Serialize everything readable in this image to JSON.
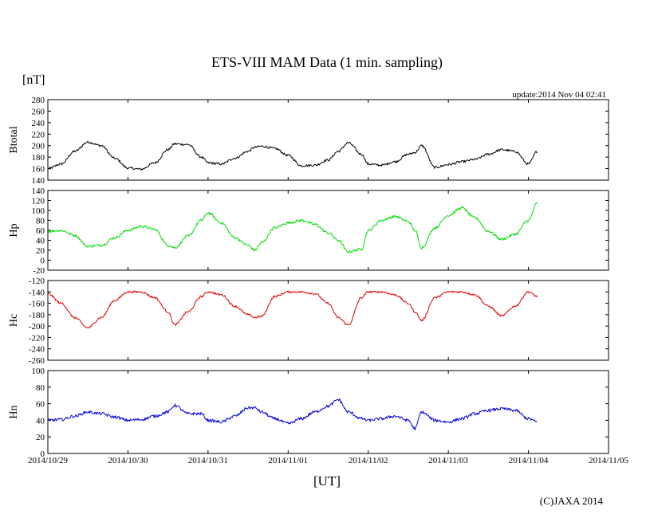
{
  "chart_data": {
    "type": "line",
    "title": "ETS-VIII MAM Data (1 min. sampling)",
    "y_unit": "[nT]",
    "xlabel": "[UT]",
    "update_text": "update:2014 Nov 04 02:41",
    "copyright": "(C)JAXA 2014",
    "x_ticks": [
      "2014/10/29",
      "2014/10/30",
      "2014/10/31",
      "2014/11/01",
      "2014/11/02",
      "2014/11/03",
      "2014/11/04",
      "2014/11/05"
    ],
    "xlim": [
      "2014/10/29 00:00",
      "2014/11/05 00:00"
    ],
    "grid": false,
    "panels": [
      {
        "ylabel": "Btotal",
        "color": "#000000",
        "ylim": [
          140,
          280
        ],
        "yticks": [
          140,
          160,
          180,
          200,
          220,
          240,
          260,
          280
        ],
        "noise": 2.0,
        "series": {
          "x": [
            "2014/10/29 00:00",
            "2014/10/29 04:00",
            "2014/10/29 08:00",
            "2014/10/29 12:00",
            "2014/10/29 16:00",
            "2014/10/29 20:00",
            "2014/10/30 00:00",
            "2014/10/30 04:00",
            "2014/10/30 08:00",
            "2014/10/30 12:00",
            "2014/10/30 14:00",
            "2014/10/30 18:00",
            "2014/10/30 22:00",
            "2014/10/31 00:00",
            "2014/10/31 04:00",
            "2014/10/31 08:00",
            "2014/10/31 12:00",
            "2014/10/31 14:00",
            "2014/10/31 16:00",
            "2014/10/31 20:00",
            "2014/11/01 00:00",
            "2014/11/01 04:00",
            "2014/11/01 08:00",
            "2014/11/01 12:00",
            "2014/11/01 15:00",
            "2014/11/01 18:00",
            "2014/11/01 22:00",
            "2014/11/02 00:00",
            "2014/11/02 04:00",
            "2014/11/02 08:00",
            "2014/11/02 12:00",
            "2014/11/02 14:00",
            "2014/11/02 16:00",
            "2014/11/02 20:00",
            "2014/11/03 00:00",
            "2014/11/03 04:00",
            "2014/11/03 08:00",
            "2014/11/03 12:00",
            "2014/11/03 16:00",
            "2014/11/03 20:00",
            "2014/11/04 00:00",
            "2014/11/04 02:40"
          ],
          "y": [
            160,
            168,
            190,
            206,
            200,
            178,
            161,
            159,
            170,
            193,
            203,
            202,
            180,
            170,
            168,
            178,
            190,
            197,
            199,
            195,
            183,
            165,
            166,
            175,
            190,
            205,
            185,
            168,
            166,
            172,
            185,
            188,
            200,
            162,
            167,
            172,
            176,
            185,
            193,
            190,
            168,
            190
          ]
        }
      },
      {
        "ylabel": "Hp",
        "color": "#00dd00",
        "ylim": [
          -20,
          140
        ],
        "yticks": [
          -20,
          0,
          20,
          40,
          60,
          80,
          100,
          120,
          140
        ],
        "noise": 2.5,
        "series": {
          "x": [
            "2014/10/29 00:00",
            "2014/10/29 04:00",
            "2014/10/29 08:00",
            "2014/10/29 12:00",
            "2014/10/29 16:00",
            "2014/10/29 20:00",
            "2014/10/30 00:00",
            "2014/10/30 04:00",
            "2014/10/30 08:00",
            "2014/10/30 12:00",
            "2014/10/30 14:00",
            "2014/10/30 18:00",
            "2014/10/30 22:00",
            "2014/10/31 00:00",
            "2014/10/31 04:00",
            "2014/10/31 08:00",
            "2014/10/31 12:00",
            "2014/10/31 14:00",
            "2014/10/31 16:00",
            "2014/10/31 20:00",
            "2014/11/01 00:00",
            "2014/11/01 04:00",
            "2014/11/01 08:00",
            "2014/11/01 12:00",
            "2014/11/01 15:00",
            "2014/11/01 18:00",
            "2014/11/01 22:00",
            "2014/11/02 00:00",
            "2014/11/02 04:00",
            "2014/11/02 08:00",
            "2014/11/02 12:00",
            "2014/11/02 14:00",
            "2014/11/02 16:00",
            "2014/11/02 20:00",
            "2014/11/03 00:00",
            "2014/11/03 04:00",
            "2014/11/03 08:00",
            "2014/11/03 12:00",
            "2014/11/03 16:00",
            "2014/11/03 20:00",
            "2014/11/04 00:00",
            "2014/11/04 02:40"
          ],
          "y": [
            58,
            60,
            50,
            28,
            30,
            45,
            60,
            68,
            62,
            30,
            25,
            48,
            80,
            95,
            75,
            45,
            30,
            20,
            35,
            65,
            75,
            80,
            72,
            55,
            40,
            17,
            22,
            60,
            80,
            88,
            78,
            60,
            25,
            65,
            90,
            105,
            85,
            58,
            42,
            52,
            80,
            115
          ]
        }
      },
      {
        "ylabel": "Hc",
        "color": "#dd0000",
        "ylim": [
          -260,
          -120
        ],
        "yticks": [
          -260,
          -240,
          -220,
          -200,
          -180,
          -160,
          -140,
          -120
        ],
        "noise": 1.8,
        "series": {
          "x": [
            "2014/10/29 00:00",
            "2014/10/29 04:00",
            "2014/10/29 08:00",
            "2014/10/29 12:00",
            "2014/10/29 16:00",
            "2014/10/29 20:00",
            "2014/10/30 00:00",
            "2014/10/30 04:00",
            "2014/10/30 08:00",
            "2014/10/30 12:00",
            "2014/10/30 14:00",
            "2014/10/30 18:00",
            "2014/10/30 22:00",
            "2014/10/31 00:00",
            "2014/10/31 04:00",
            "2014/10/31 08:00",
            "2014/10/31 12:00",
            "2014/10/31 14:00",
            "2014/10/31 16:00",
            "2014/10/31 20:00",
            "2014/11/01 00:00",
            "2014/11/01 04:00",
            "2014/11/01 08:00",
            "2014/11/01 12:00",
            "2014/11/01 15:00",
            "2014/11/01 18:00",
            "2014/11/01 22:00",
            "2014/11/02 00:00",
            "2014/11/02 04:00",
            "2014/11/02 08:00",
            "2014/11/02 12:00",
            "2014/11/02 14:00",
            "2014/11/02 16:00",
            "2014/11/02 20:00",
            "2014/11/03 00:00",
            "2014/11/03 04:00",
            "2014/11/03 08:00",
            "2014/11/03 12:00",
            "2014/11/03 16:00",
            "2014/11/03 20:00",
            "2014/11/04 00:00",
            "2014/11/04 02:40"
          ],
          "y": [
            -143,
            -160,
            -185,
            -203,
            -185,
            -155,
            -140,
            -140,
            -150,
            -175,
            -198,
            -175,
            -148,
            -140,
            -145,
            -165,
            -180,
            -185,
            -183,
            -148,
            -140,
            -140,
            -143,
            -160,
            -185,
            -198,
            -150,
            -140,
            -140,
            -145,
            -160,
            -175,
            -190,
            -150,
            -140,
            -140,
            -145,
            -165,
            -182,
            -165,
            -140,
            -148
          ]
        }
      },
      {
        "ylabel": "Hn",
        "color": "#0000dd",
        "ylim": [
          0,
          100
        ],
        "yticks": [
          0,
          20,
          40,
          60,
          80,
          100
        ],
        "noise": 1.8,
        "series": {
          "x": [
            "2014/10/29 00:00",
            "2014/10/29 04:00",
            "2014/10/29 08:00",
            "2014/10/29 12:00",
            "2014/10/29 16:00",
            "2014/10/29 20:00",
            "2014/10/30 00:00",
            "2014/10/30 04:00",
            "2014/10/30 08:00",
            "2014/10/30 12:00",
            "2014/10/30 14:00",
            "2014/10/30 18:00",
            "2014/10/30 22:00",
            "2014/10/31 00:00",
            "2014/10/31 04:00",
            "2014/10/31 08:00",
            "2014/10/31 12:00",
            "2014/10/31 14:00",
            "2014/10/31 16:00",
            "2014/10/31 20:00",
            "2014/11/01 00:00",
            "2014/11/01 04:00",
            "2014/11/01 08:00",
            "2014/11/01 12:00",
            "2014/11/01 15:00",
            "2014/11/01 18:00",
            "2014/11/01 22:00",
            "2014/11/02 00:00",
            "2014/11/02 04:00",
            "2014/11/02 08:00",
            "2014/11/02 12:00",
            "2014/11/02 14:00",
            "2014/11/02 16:00",
            "2014/11/02 20:00",
            "2014/11/03 00:00",
            "2014/11/03 04:00",
            "2014/11/03 08:00",
            "2014/11/03 12:00",
            "2014/11/03 16:00",
            "2014/11/03 20:00",
            "2014/11/04 00:00",
            "2014/11/04 02:40"
          ],
          "y": [
            40,
            41,
            45,
            50,
            48,
            44,
            40,
            41,
            45,
            50,
            58,
            48,
            48,
            40,
            38,
            45,
            55,
            55,
            50,
            42,
            36,
            42,
            50,
            57,
            65,
            50,
            42,
            40,
            42,
            45,
            40,
            30,
            50,
            40,
            38,
            42,
            48,
            52,
            54,
            52,
            42,
            38
          ]
        }
      }
    ]
  }
}
